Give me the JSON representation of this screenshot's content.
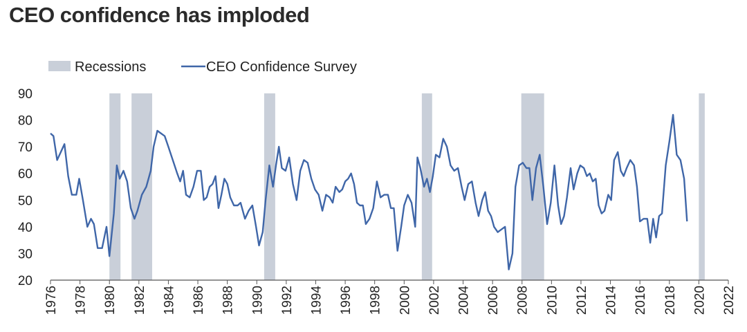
{
  "chart_data": {
    "type": "line",
    "title": "CEO confidence has imploded",
    "legend": [
      {
        "label": "Recessions",
        "kind": "band",
        "color": "#c9cfd9"
      },
      {
        "label": "CEO Confidence Survey",
        "kind": "line",
        "color": "#3f66a8"
      }
    ],
    "legend_position": "top-left",
    "xlim": [
      1976,
      2022
    ],
    "ylim": [
      20,
      90
    ],
    "yticks": [
      20,
      30,
      40,
      50,
      60,
      70,
      80,
      90
    ],
    "xticks": [
      1976,
      1978,
      1980,
      1982,
      1984,
      1986,
      1988,
      1990,
      1992,
      1994,
      1996,
      1998,
      2000,
      2002,
      2004,
      2006,
      2008,
      2010,
      2012,
      2014,
      2016,
      2018,
      2020,
      2022
    ],
    "grid": false,
    "recessions": [
      [
        1980.0,
        1980.75
      ],
      [
        1981.5,
        1982.9
      ],
      [
        1990.5,
        1991.25
      ],
      [
        2001.2,
        2001.9
      ],
      [
        2007.95,
        2009.5
      ],
      [
        2020.0,
        2020.4
      ]
    ],
    "series": [
      {
        "name": "CEO Confidence Survey",
        "color": "#3f66a8",
        "points": [
          [
            1976.0,
            75
          ],
          [
            1976.2,
            74
          ],
          [
            1976.45,
            65
          ],
          [
            1976.7,
            68
          ],
          [
            1976.95,
            71
          ],
          [
            1977.2,
            59
          ],
          [
            1977.45,
            52
          ],
          [
            1977.75,
            52
          ],
          [
            1977.95,
            58
          ],
          [
            1978.2,
            50
          ],
          [
            1978.5,
            40
          ],
          [
            1978.75,
            43
          ],
          [
            1978.95,
            41
          ],
          [
            1979.2,
            32
          ],
          [
            1979.5,
            32
          ],
          [
            1979.8,
            40
          ],
          [
            1980.0,
            29
          ],
          [
            1980.3,
            45
          ],
          [
            1980.5,
            63
          ],
          [
            1980.7,
            58
          ],
          [
            1980.95,
            61
          ],
          [
            1981.2,
            57
          ],
          [
            1981.45,
            47
          ],
          [
            1981.7,
            43
          ],
          [
            1981.9,
            46
          ],
          [
            1982.2,
            52
          ],
          [
            1982.5,
            55
          ],
          [
            1982.8,
            61
          ],
          [
            1983.0,
            70
          ],
          [
            1983.25,
            76
          ],
          [
            1983.5,
            75
          ],
          [
            1983.75,
            74
          ],
          [
            1984.0,
            70
          ],
          [
            1984.3,
            65
          ],
          [
            1984.6,
            60
          ],
          [
            1984.8,
            57
          ],
          [
            1985.0,
            61
          ],
          [
            1985.2,
            52
          ],
          [
            1985.45,
            51
          ],
          [
            1985.7,
            55
          ],
          [
            1985.95,
            61
          ],
          [
            1986.2,
            61
          ],
          [
            1986.4,
            50
          ],
          [
            1986.6,
            51
          ],
          [
            1986.8,
            55
          ],
          [
            1987.0,
            56
          ],
          [
            1987.2,
            59
          ],
          [
            1987.4,
            47
          ],
          [
            1987.6,
            52
          ],
          [
            1987.8,
            58
          ],
          [
            1988.0,
            56
          ],
          [
            1988.2,
            51
          ],
          [
            1988.45,
            48
          ],
          [
            1988.7,
            48
          ],
          [
            1988.9,
            49
          ],
          [
            1989.2,
            43
          ],
          [
            1989.45,
            46
          ],
          [
            1989.7,
            48
          ],
          [
            1989.95,
            40
          ],
          [
            1990.15,
            33
          ],
          [
            1990.4,
            38
          ],
          [
            1990.6,
            50
          ],
          [
            1990.85,
            63
          ],
          [
            1991.1,
            55
          ],
          [
            1991.3,
            63
          ],
          [
            1991.5,
            70
          ],
          [
            1991.7,
            62
          ],
          [
            1991.95,
            61
          ],
          [
            1992.2,
            66
          ],
          [
            1992.45,
            56
          ],
          [
            1992.7,
            50
          ],
          [
            1992.95,
            61
          ],
          [
            1993.2,
            65
          ],
          [
            1993.45,
            64
          ],
          [
            1993.7,
            58
          ],
          [
            1993.95,
            54
          ],
          [
            1994.2,
            52
          ],
          [
            1994.45,
            46
          ],
          [
            1994.7,
            52
          ],
          [
            1994.95,
            51
          ],
          [
            1995.15,
            49
          ],
          [
            1995.35,
            55
          ],
          [
            1995.6,
            53
          ],
          [
            1995.8,
            54
          ],
          [
            1996.0,
            57
          ],
          [
            1996.2,
            58
          ],
          [
            1996.4,
            60
          ],
          [
            1996.6,
            56
          ],
          [
            1996.8,
            49
          ],
          [
            1997.0,
            48
          ],
          [
            1997.2,
            48
          ],
          [
            1997.4,
            41
          ],
          [
            1997.65,
            43
          ],
          [
            1997.9,
            47
          ],
          [
            1998.15,
            57
          ],
          [
            1998.4,
            51
          ],
          [
            1998.65,
            52
          ],
          [
            1998.9,
            52
          ],
          [
            1999.1,
            47
          ],
          [
            1999.3,
            47
          ],
          [
            1999.55,
            31
          ],
          [
            1999.8,
            40
          ],
          [
            2000.0,
            48
          ],
          [
            2000.25,
            52
          ],
          [
            2000.5,
            49
          ],
          [
            2000.75,
            40
          ],
          [
            2000.9,
            66
          ],
          [
            2001.1,
            62
          ],
          [
            2001.35,
            55
          ],
          [
            2001.55,
            58
          ],
          [
            2001.75,
            53
          ],
          [
            2001.95,
            59
          ],
          [
            2002.15,
            67
          ],
          [
            2002.4,
            66
          ],
          [
            2002.65,
            73
          ],
          [
            2002.9,
            70
          ],
          [
            2003.15,
            63
          ],
          [
            2003.4,
            61
          ],
          [
            2003.65,
            62
          ],
          [
            2003.9,
            55
          ],
          [
            2004.1,
            50
          ],
          [
            2004.35,
            56
          ],
          [
            2004.6,
            57
          ],
          [
            2004.85,
            49
          ],
          [
            2005.05,
            44
          ],
          [
            2005.3,
            50
          ],
          [
            2005.5,
            53
          ],
          [
            2005.7,
            46
          ],
          [
            2005.9,
            44
          ],
          [
            2006.1,
            40
          ],
          [
            2006.35,
            38
          ],
          [
            2006.6,
            39
          ],
          [
            2006.85,
            40
          ],
          [
            2007.1,
            24
          ],
          [
            2007.35,
            30
          ],
          [
            2007.55,
            55
          ],
          [
            2007.8,
            63
          ],
          [
            2008.05,
            64
          ],
          [
            2008.3,
            62
          ],
          [
            2008.5,
            62
          ],
          [
            2008.7,
            50
          ],
          [
            2008.95,
            62
          ],
          [
            2009.2,
            67
          ],
          [
            2009.45,
            55
          ],
          [
            2009.7,
            41
          ],
          [
            2009.95,
            49
          ],
          [
            2010.2,
            63
          ],
          [
            2010.45,
            48
          ],
          [
            2010.65,
            41
          ],
          [
            2010.85,
            44
          ],
          [
            2011.05,
            51
          ],
          [
            2011.3,
            62
          ],
          [
            2011.5,
            54
          ],
          [
            2011.75,
            60
          ],
          [
            2011.95,
            63
          ],
          [
            2012.2,
            62
          ],
          [
            2012.4,
            59
          ],
          [
            2012.6,
            60
          ],
          [
            2012.8,
            57
          ],
          [
            2013.0,
            58
          ],
          [
            2013.2,
            48
          ],
          [
            2013.4,
            45
          ],
          [
            2013.6,
            46
          ],
          [
            2013.85,
            52
          ],
          [
            2014.05,
            50
          ],
          [
            2014.25,
            65
          ],
          [
            2014.5,
            68
          ],
          [
            2014.7,
            61
          ],
          [
            2014.9,
            59
          ],
          [
            2015.1,
            62
          ],
          [
            2015.35,
            65
          ],
          [
            2015.6,
            63
          ],
          [
            2015.8,
            55
          ],
          [
            2016.0,
            42
          ],
          [
            2016.25,
            43
          ],
          [
            2016.5,
            43
          ],
          [
            2016.7,
            34
          ],
          [
            2016.9,
            43
          ],
          [
            2017.1,
            36
          ],
          [
            2017.3,
            44
          ],
          [
            2017.5,
            45
          ],
          [
            2017.75,
            63
          ],
          [
            2018.0,
            72
          ],
          [
            2018.25,
            82
          ],
          [
            2018.5,
            67
          ],
          [
            2018.75,
            65
          ],
          [
            2019.0,
            58
          ],
          [
            2019.2,
            42
          ]
        ]
      }
    ]
  }
}
